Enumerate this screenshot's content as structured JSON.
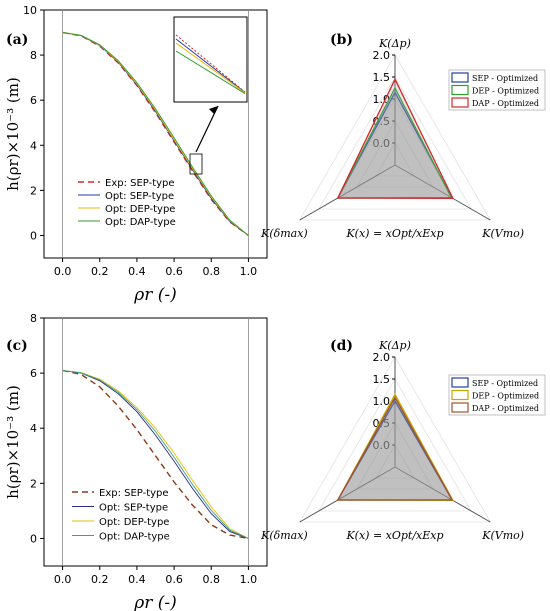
{
  "panels": {
    "a": {
      "label": "(a)",
      "ylabel": "h(ρr)×10⁻³ (m)",
      "xlabel": "ρr (-)",
      "legend": [
        "Exp: SEP-type",
        "Opt: SEP-type",
        "Opt: DEP-type",
        "Opt: DAP-type"
      ]
    },
    "b": {
      "label": "(b)",
      "legend": [
        "SEP - Optimized",
        "DEP - Optimized",
        "DAP - Optimized"
      ],
      "axes": [
        "K(Δp)",
        "K(Vmo)",
        "K(δmax)"
      ],
      "formula": "K(x) = xOpt/xExp"
    },
    "c": {
      "label": "(c)",
      "ylabel": "h(ρr)×10⁻³ (m)",
      "xlabel": "ρr (-)",
      "legend": [
        "Exp: SEP-type",
        "Opt: SEP-type",
        "Opt: DEP-type",
        "Opt: DAP-type"
      ]
    },
    "d": {
      "label": "(d)",
      "legend": [
        "SEP - Optimized",
        "DEP - Optimized",
        "DAP - Optimized"
      ],
      "axes": [
        "K(Δp)",
        "K(Vmo)",
        "K(δmax)"
      ],
      "formula": "K(x) = xOpt/xExp"
    }
  },
  "colors": {
    "exp_a": "#d62728",
    "exp_c": "#8b3a1a",
    "sep": "#1f3fa8",
    "dep": "#2ca02c",
    "dap": "#d62728",
    "dep_c": "#e6c200",
    "dap_c": "#3aa38a",
    "sep_c": "#2a2a8a"
  },
  "chart_data": [
    {
      "type": "line",
      "panel": "a",
      "xlim": [
        -0.1,
        1.1
      ],
      "ylim": [
        -1,
        10
      ],
      "xticks": [
        0.0,
        0.2,
        0.4,
        0.6,
        0.8,
        1.0
      ],
      "yticks": [
        0,
        2,
        4,
        6,
        8,
        10
      ],
      "series": [
        {
          "name": "Exp: SEP-type",
          "x": [
            0,
            0.1,
            0.2,
            0.3,
            0.4,
            0.5,
            0.6,
            0.7,
            0.8,
            0.9,
            1.0
          ],
          "y": [
            9.0,
            8.85,
            8.4,
            7.65,
            6.65,
            5.45,
            4.15,
            2.85,
            1.6,
            0.6,
            0.0
          ]
        },
        {
          "name": "Opt: SEP-type",
          "x": [
            0,
            0.1,
            0.2,
            0.3,
            0.4,
            0.5,
            0.6,
            0.7,
            0.8,
            0.9,
            1.0
          ],
          "y": [
            9.0,
            8.86,
            8.42,
            7.68,
            6.68,
            5.5,
            4.2,
            2.9,
            1.65,
            0.62,
            0.0
          ]
        },
        {
          "name": "Opt: DEP-type",
          "x": [
            0,
            0.1,
            0.2,
            0.3,
            0.4,
            0.5,
            0.6,
            0.7,
            0.8,
            0.9,
            1.0
          ],
          "y": [
            9.0,
            8.87,
            8.44,
            7.71,
            6.72,
            5.55,
            4.25,
            2.95,
            1.7,
            0.65,
            0.0
          ]
        },
        {
          "name": "Opt: DAP-type",
          "x": [
            0,
            0.1,
            0.2,
            0.3,
            0.4,
            0.5,
            0.6,
            0.7,
            0.8,
            0.9,
            1.0
          ],
          "y": [
            9.0,
            8.88,
            8.46,
            7.75,
            6.78,
            5.62,
            4.33,
            3.02,
            1.76,
            0.68,
            0.0
          ]
        }
      ]
    },
    {
      "type": "radar",
      "panel": "b",
      "axes": [
        "K(Δp)",
        "K(Vmo)",
        "K(δmax)"
      ],
      "rticks": [
        0.0,
        0.5,
        1.0,
        1.5,
        2.0
      ],
      "rlim": [
        -0.5,
        2.0
      ],
      "series": [
        {
          "name": "SEP - Optimized",
          "values": [
            1.15,
            1.0,
            1.0
          ]
        },
        {
          "name": "DEP - Optimized",
          "values": [
            1.25,
            0.98,
            1.0
          ]
        },
        {
          "name": "DAP - Optimized",
          "values": [
            1.45,
            1.02,
            1.0
          ]
        }
      ]
    },
    {
      "type": "line",
      "panel": "c",
      "xlim": [
        -0.1,
        1.1
      ],
      "ylim": [
        -1,
        8
      ],
      "xticks": [
        0.0,
        0.2,
        0.4,
        0.6,
        0.8,
        1.0
      ],
      "yticks": [
        0,
        2,
        4,
        6,
        8
      ],
      "series": [
        {
          "name": "Exp: SEP-type",
          "x": [
            0,
            0.1,
            0.2,
            0.3,
            0.4,
            0.5,
            0.6,
            0.7,
            0.8,
            0.9,
            1.0
          ],
          "y": [
            6.1,
            5.95,
            5.5,
            4.8,
            3.95,
            3.0,
            2.05,
            1.2,
            0.5,
            0.12,
            0.0
          ]
        },
        {
          "name": "Opt: SEP-type",
          "x": [
            0,
            0.1,
            0.2,
            0.3,
            0.4,
            0.5,
            0.6,
            0.7,
            0.8,
            0.9,
            1.0
          ],
          "y": [
            6.1,
            6.0,
            5.72,
            5.25,
            4.6,
            3.75,
            2.8,
            1.8,
            0.9,
            0.25,
            0.0
          ]
        },
        {
          "name": "Opt: DEP-type",
          "x": [
            0,
            0.1,
            0.2,
            0.3,
            0.4,
            0.5,
            0.6,
            0.7,
            0.8,
            0.9,
            1.0
          ],
          "y": [
            6.1,
            6.02,
            5.78,
            5.35,
            4.75,
            4.0,
            3.1,
            2.1,
            1.15,
            0.35,
            0.0
          ]
        },
        {
          "name": "Opt: DAP-type",
          "x": [
            0,
            0.1,
            0.2,
            0.3,
            0.4,
            0.5,
            0.6,
            0.7,
            0.8,
            0.9,
            1.0
          ],
          "y": [
            6.1,
            6.01,
            5.75,
            5.3,
            4.68,
            3.88,
            2.95,
            1.95,
            1.02,
            0.3,
            0.0
          ]
        }
      ]
    },
    {
      "type": "radar",
      "panel": "d",
      "axes": [
        "K(Δp)",
        "K(Vmo)",
        "K(δmax)"
      ],
      "rticks": [
        0.0,
        0.5,
        1.0,
        1.5,
        2.0
      ],
      "rlim": [
        -0.5,
        2.0
      ],
      "series": [
        {
          "name": "SEP - Optimized",
          "values": [
            1.0,
            1.0,
            1.0
          ]
        },
        {
          "name": "DEP - Optimized",
          "values": [
            1.15,
            1.02,
            1.0
          ]
        },
        {
          "name": "DAP - Optimized",
          "values": [
            1.08,
            1.0,
            1.0
          ]
        }
      ]
    }
  ]
}
